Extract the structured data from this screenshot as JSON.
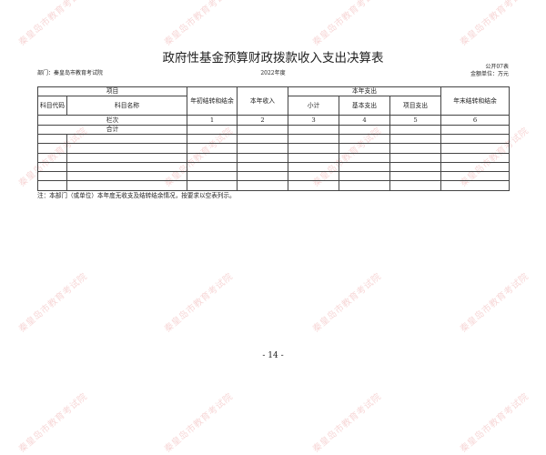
{
  "title": "政府性基金预算财政拨款收入支出决算表",
  "form_number": "公开07表",
  "department": "部门：秦皇岛市教育考试院",
  "year": "2022年度",
  "unit": "金额单位：万元",
  "table": {
    "header_item": "项目",
    "header_code": "科目代码",
    "header_name": "科目名称",
    "header_opening": "年初结转和结余",
    "header_income": "本年收入",
    "header_expense": "本年支出",
    "header_subtotal": "小计",
    "header_basic": "基本支出",
    "header_project": "项目支出",
    "header_closing": "年末结转和结余",
    "column_index_label": "栏次",
    "column_index": [
      "1",
      "2",
      "3",
      "4",
      "5",
      "6"
    ],
    "total_label": "合计",
    "rows": [
      [
        "",
        "",
        "",
        "",
        "",
        "",
        "",
        ""
      ],
      [
        "",
        "",
        "",
        "",
        "",
        "",
        "",
        ""
      ],
      [
        "",
        "",
        "",
        "",
        "",
        "",
        "",
        ""
      ],
      [
        "",
        "",
        "",
        "",
        "",
        "",
        "",
        ""
      ],
      [
        "",
        "",
        "",
        "",
        "",
        "",
        "",
        ""
      ],
      [
        "",
        "",
        "",
        "",
        "",
        "",
        "",
        ""
      ]
    ]
  },
  "note": "注：本部门（或单位）本年度无收支及结转结余情况，按要求以空表列示。",
  "page_number": "- 14 -",
  "watermark": "秦皇岛市教育考试院",
  "watermark_color": "#e06e6e"
}
